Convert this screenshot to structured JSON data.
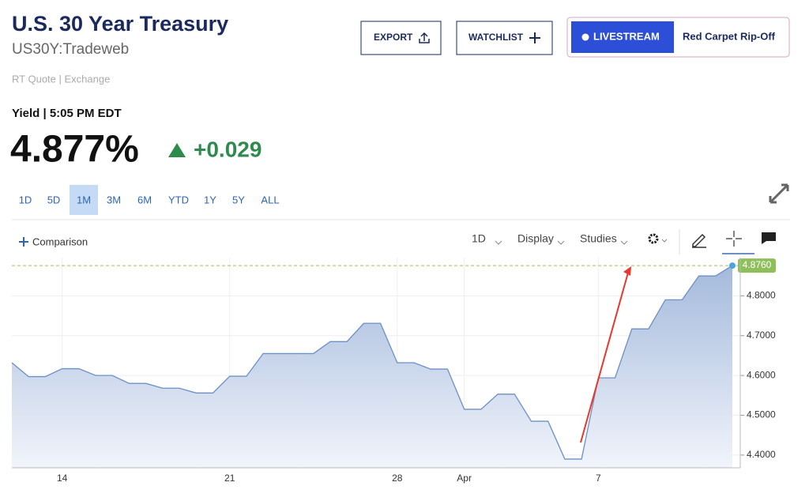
{
  "header": {
    "title": "U.S. 30 Year Treasury",
    "symbol": "US30Y:Tradeweb",
    "quote_source": "RT Quote | Exchange",
    "buttons": [
      "EXPORT",
      "WATCHLIST"
    ],
    "livestream": "LIVESTREAM",
    "promo": "Red Carpet Rip-Off"
  },
  "quote": {
    "label": "Yield | 5:05 PM EDT",
    "value": "4.877%",
    "change": "+0.029"
  },
  "ranges": [
    "1D",
    "5D",
    "1M",
    "3M",
    "6M",
    "YTD",
    "1Y",
    "5Y",
    "ALL"
  ],
  "active_range_index": 2,
  "toolbar": {
    "comparison": "Comparison",
    "interval": "1D",
    "display": "Display",
    "studies": "Studies"
  },
  "chart_data": {
    "type": "area",
    "categories": [
      null,
      null,
      null,
      "14",
      null,
      null,
      null,
      null,
      null,
      null,
      null,
      null,
      null,
      "21",
      null,
      null,
      null,
      null,
      null,
      null,
      null,
      null,
      null,
      "28",
      null,
      null,
      null,
      "Apr",
      null,
      null,
      null,
      null,
      null,
      null,
      null,
      "7",
      null,
      null,
      null,
      null,
      null,
      null,
      null,
      null
    ],
    "values": [
      4.632,
      4.597,
      4.597,
      4.617,
      4.617,
      4.6,
      4.6,
      4.58,
      4.58,
      4.568,
      4.568,
      4.556,
      4.556,
      4.598,
      4.598,
      4.655,
      4.655,
      4.655,
      4.655,
      4.685,
      4.685,
      4.731,
      4.731,
      4.632,
      4.632,
      4.616,
      4.616,
      4.515,
      4.515,
      4.553,
      4.553,
      4.485,
      4.485,
      4.39,
      4.39,
      4.594,
      4.594,
      4.717,
      4.717,
      4.79,
      4.79,
      4.85,
      4.85,
      4.876
    ],
    "price_label": "4.8760",
    "color": "#6d8fc4",
    "ylim": [
      4.368,
      4.896
    ],
    "yticks": [
      {
        "value": 4.4,
        "label": "4.4000"
      },
      {
        "value": 4.5,
        "label": "4.5000"
      },
      {
        "value": 4.6,
        "label": "4.6000"
      },
      {
        "value": 4.7,
        "label": "4.7000"
      },
      {
        "value": 4.8,
        "label": "4.8000"
      }
    ],
    "grid": true
  }
}
